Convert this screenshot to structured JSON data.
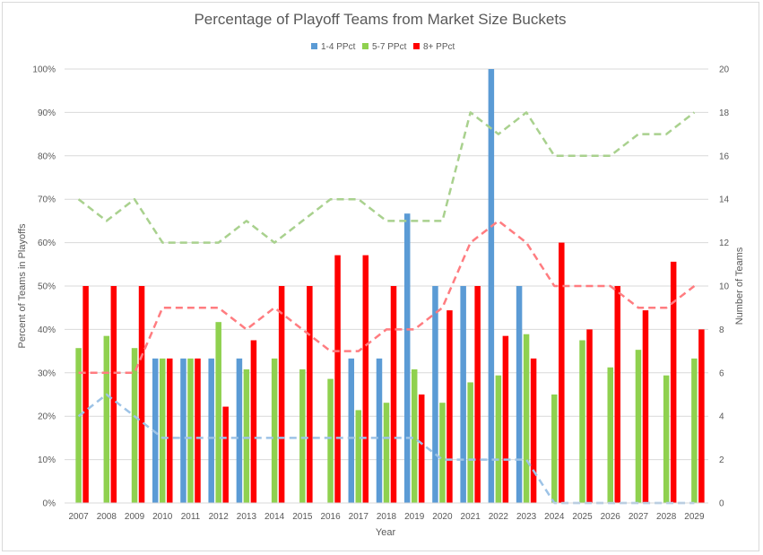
{
  "chart_data": {
    "type": "bar",
    "title": "Percentage of Playoff Teams from Market Size Buckets",
    "xlabel": "Year",
    "ylabel": "Percent of Teams in Playoffs",
    "y2label": "Number of Teams",
    "ylim": [
      0,
      1
    ],
    "y2lim": [
      0,
      20
    ],
    "yticks": [
      "0%",
      "10%",
      "20%",
      "30%",
      "40%",
      "50%",
      "60%",
      "70%",
      "80%",
      "90%",
      "100%"
    ],
    "y2ticks": [
      "0",
      "2",
      "4",
      "6",
      "8",
      "10",
      "12",
      "14",
      "16",
      "18",
      "20"
    ],
    "grid": true,
    "legend_position": "top",
    "categories": [
      "2007",
      "2008",
      "2009",
      "2010",
      "2011",
      "2012",
      "2013",
      "2014",
      "2015",
      "2016",
      "2017",
      "2018",
      "2019",
      "2020",
      "2021",
      "2022",
      "2023",
      "2024",
      "2025",
      "2026",
      "2027",
      "2028",
      "2029"
    ],
    "series": [
      {
        "name": "1-4 PPct",
        "color": "#5b9bd5",
        "values": [
          0,
          0,
          0,
          0.333,
          0.333,
          0.333,
          0.333,
          0,
          0,
          0,
          0.333,
          0.333,
          0.667,
          0.5,
          0.5,
          1.0,
          0.5,
          0,
          0,
          0,
          0,
          0,
          0
        ]
      },
      {
        "name": "5-7 PPct",
        "color": "#8fd14f",
        "values": [
          0.357,
          0.385,
          0.357,
          0.333,
          0.333,
          0.417,
          0.308,
          0.333,
          0.308,
          0.286,
          0.214,
          0.231,
          0.308,
          0.231,
          0.278,
          0.294,
          0.389,
          0.25,
          0.375,
          0.3125,
          0.353,
          0.294,
          0.333
        ]
      },
      {
        "name": "8+ PPct",
        "color": "#ff0000",
        "values": [
          0.5,
          0.5,
          0.5,
          0.333,
          0.333,
          0.222,
          0.375,
          0.5,
          0.5,
          0.571,
          0.571,
          0.5,
          0.25,
          0.444,
          0.5,
          0.385,
          0.333,
          0.6,
          0.4,
          0.5,
          0.444,
          0.556,
          0.4
        ]
      }
    ],
    "team_count_lines": [
      {
        "color": "#9dc3e6",
        "dash": "dashed",
        "axis": "secondary",
        "values": [
          4,
          5,
          4,
          3,
          3,
          3,
          3,
          3,
          3,
          3,
          3,
          3,
          3,
          2,
          2,
          2,
          2,
          0,
          0,
          0,
          0,
          0,
          0
        ]
      },
      {
        "color": "#a9d18e",
        "dash": "dashed",
        "axis": "secondary",
        "values": [
          14,
          13,
          14,
          12,
          12,
          12,
          13,
          12,
          13,
          14,
          14,
          13,
          13,
          13,
          18,
          17,
          18,
          16,
          16,
          16,
          17,
          17,
          18
        ]
      },
      {
        "color": "#ff7c80",
        "dash": "dashed",
        "axis": "secondary",
        "values": [
          6,
          6,
          6,
          9,
          9,
          9,
          8,
          9,
          8,
          7,
          7,
          8,
          8,
          9,
          12,
          13,
          12,
          10,
          10,
          10,
          9,
          9,
          10
        ]
      }
    ]
  }
}
